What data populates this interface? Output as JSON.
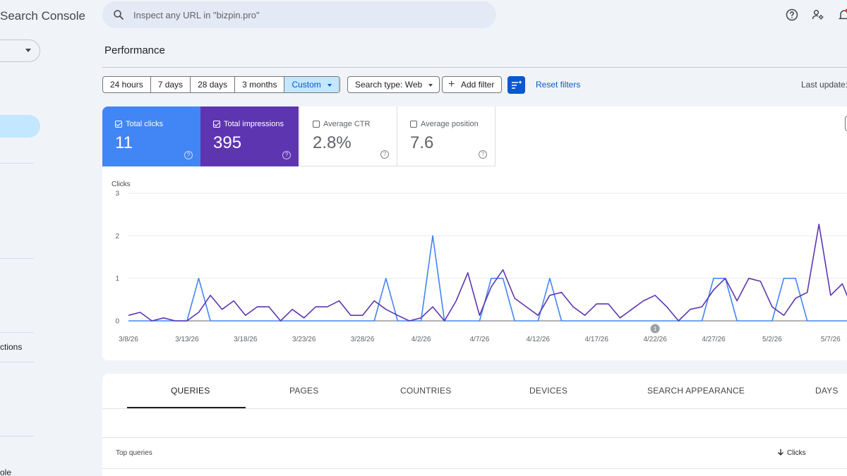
{
  "app": {
    "title": "Search Console"
  },
  "sidebar": {
    "items": [
      {
        "label": "ctions"
      },
      {
        "label": "ole"
      }
    ]
  },
  "search": {
    "placeholder": "Inspect any URL in \"bizpin.pro\""
  },
  "header": {
    "icons": [
      "help-icon",
      "manage-users-icon",
      "notifications-icon"
    ]
  },
  "page": {
    "title": "Performance"
  },
  "filters": {
    "date_ranges": [
      "24 hours",
      "7 days",
      "28 days",
      "3 months",
      "Custom"
    ],
    "selected_range": "Custom",
    "search_type": "Search type: Web",
    "add_filter": "Add filter",
    "reset": "Reset filters",
    "last_update": "Last update:"
  },
  "metrics": [
    {
      "label": "Total clicks",
      "value": "11",
      "checked": true,
      "color": "#4285f4"
    },
    {
      "label": "Total impressions",
      "value": "395",
      "checked": true,
      "color": "#5e35b1"
    },
    {
      "label": "Average CTR",
      "value": "2.8%",
      "checked": false
    },
    {
      "label": "Average position",
      "value": "7.6",
      "checked": false
    }
  ],
  "chart_data": {
    "type": "line",
    "ylabel": "Clicks",
    "ylim": [
      0,
      3
    ],
    "yticks": [
      0,
      1,
      2,
      3
    ],
    "xticks": [
      "3/8/26",
      "3/13/26",
      "3/18/26",
      "3/23/26",
      "3/28/26",
      "4/2/26",
      "4/7/26",
      "4/12/26",
      "4/17/26",
      "4/22/26",
      "4/27/26",
      "5/2/26",
      "5/7/26"
    ],
    "annotation": {
      "label": "1",
      "date_index": 45
    },
    "series": [
      {
        "name": "Clicks",
        "color": "#4285f4",
        "values": [
          0,
          0,
          0,
          0,
          0,
          0,
          1,
          0,
          0,
          0,
          0,
          0,
          0,
          0,
          0,
          0,
          0,
          0,
          0,
          0,
          0,
          0,
          1,
          0,
          0,
          0,
          2,
          0,
          0,
          0,
          0,
          1,
          1,
          0,
          0,
          0,
          1,
          0,
          0,
          0,
          0,
          0,
          0,
          0,
          0,
          0,
          0,
          0,
          0,
          0,
          1,
          1,
          0,
          0,
          0,
          0,
          1,
          1,
          0,
          0,
          0,
          0,
          0
        ]
      },
      {
        "name": "Impressions",
        "color": "#5e35b1",
        "values": [
          0.13,
          0.2,
          0,
          0.07,
          0,
          0,
          0.2,
          0.6,
          0.27,
          0.47,
          0.13,
          0.33,
          0.33,
          0,
          0.27,
          0.07,
          0.33,
          0.33,
          0.47,
          0.13,
          0.13,
          0.47,
          0.27,
          0.13,
          0,
          0.07,
          0.33,
          0,
          0.47,
          1.13,
          0.13,
          0.8,
          1.2,
          0.53,
          0.33,
          0.13,
          0.6,
          0.67,
          0.33,
          0.13,
          0.4,
          0.4,
          0.07,
          0.27,
          0.47,
          0.6,
          0.33,
          0,
          0.27,
          0.33,
          0.73,
          1,
          0.47,
          1,
          0.93,
          0.33,
          0.13,
          0.53,
          0.67,
          2.27,
          0.6,
          0.87,
          0.2
        ]
      }
    ]
  },
  "table": {
    "tabs": [
      "QUERIES",
      "PAGES",
      "COUNTRIES",
      "DEVICES",
      "SEARCH APPEARANCE",
      "DAYS"
    ],
    "active_tab": "QUERIES",
    "columns": [
      "Top queries",
      "Clicks"
    ]
  }
}
